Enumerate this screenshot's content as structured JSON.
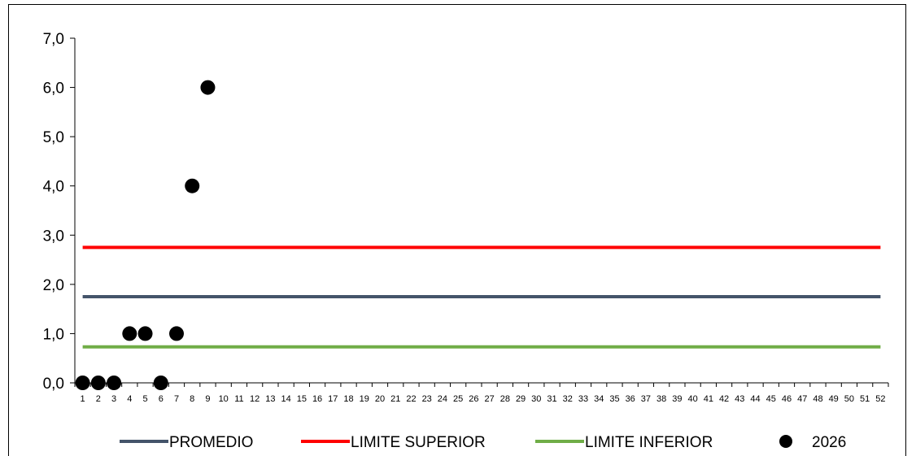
{
  "chart_data": {
    "type": "scatter",
    "title": "",
    "xlabel": "",
    "ylabel": "",
    "ylim": [
      0,
      7
    ],
    "y_ticks": [
      "0,0",
      "1,0",
      "2,0",
      "3,0",
      "4,0",
      "5,0",
      "6,0",
      "7,0"
    ],
    "x_categories": [
      "1",
      "2",
      "3",
      "4",
      "5",
      "6",
      "7",
      "8",
      "9",
      "10",
      "11",
      "12",
      "13",
      "14",
      "15",
      "16",
      "17",
      "18",
      "19",
      "20",
      "21",
      "22",
      "23",
      "24",
      "25",
      "26",
      "27",
      "28",
      "29",
      "30",
      "31",
      "32",
      "33",
      "34",
      "35",
      "36",
      "37",
      "38",
      "39",
      "40",
      "41",
      "42",
      "43",
      "44",
      "45",
      "46",
      "47",
      "48",
      "49",
      "50",
      "51",
      "52"
    ],
    "grid": false,
    "legend_position": "bottom",
    "series": [
      {
        "name": "PROMEDIO",
        "kind": "line",
        "color": "#44546A",
        "values": [
          1.75
        ]
      },
      {
        "name": "LIMITE SUPERIOR",
        "kind": "line",
        "color": "#FF0000",
        "values": [
          2.75
        ]
      },
      {
        "name": "LIMITE INFERIOR",
        "kind": "line",
        "color": "#70AD47",
        "values": [
          0.73
        ]
      },
      {
        "name": "2026",
        "kind": "scatter",
        "color": "#000000",
        "x": [
          1,
          2,
          3,
          4,
          5,
          6,
          7,
          8,
          9
        ],
        "values": [
          0,
          0,
          0,
          1,
          1,
          0,
          1,
          4,
          6
        ]
      }
    ]
  }
}
